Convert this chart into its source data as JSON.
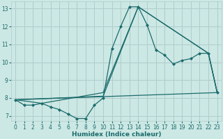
{
  "xlabel": "Humidex (Indice chaleur)",
  "bg_color": "#cce8e4",
  "grid_color": "#b0cccc",
  "line_color": "#1a6b6b",
  "xlim": [
    -0.5,
    23.5
  ],
  "ylim": [
    6.7,
    13.4
  ],
  "xticks": [
    0,
    1,
    2,
    3,
    4,
    5,
    6,
    7,
    8,
    9,
    10,
    11,
    12,
    13,
    14,
    15,
    16,
    17,
    18,
    19,
    20,
    21,
    22,
    23
  ],
  "yticks": [
    7,
    8,
    9,
    10,
    11,
    12,
    13
  ],
  "line1_x": [
    0,
    1,
    2,
    3,
    4,
    5,
    6,
    7,
    8,
    9,
    10,
    11,
    12,
    13,
    14,
    15,
    16,
    17,
    18,
    19,
    20,
    21,
    22,
    23
  ],
  "line1_y": [
    7.9,
    7.6,
    7.6,
    7.7,
    7.5,
    7.35,
    7.1,
    6.85,
    6.85,
    7.6,
    8.0,
    10.75,
    12.0,
    13.1,
    13.1,
    12.1,
    10.7,
    10.4,
    9.9,
    10.1,
    10.2,
    10.5,
    10.5,
    8.3
  ],
  "line2_x": [
    0,
    3,
    10,
    14,
    22,
    23
  ],
  "line2_y": [
    7.9,
    7.7,
    8.3,
    13.1,
    10.5,
    8.3
  ],
  "line3_x": [
    0,
    23
  ],
  "line3_y": [
    7.9,
    8.3
  ],
  "line4_x": [
    0,
    10,
    14,
    22,
    23
  ],
  "line4_y": [
    7.9,
    8.1,
    13.1,
    10.5,
    8.3
  ]
}
